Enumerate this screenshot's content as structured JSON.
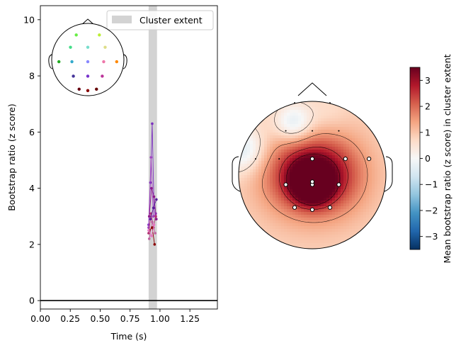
{
  "chart_data": [
    {
      "type": "line",
      "xlabel": "Time (s)",
      "ylabel": "Bootstrap ratio (z score)",
      "xlim": [
        0.0,
        1.48
      ],
      "ylim": [
        -0.3,
        10.5
      ],
      "xticks": [
        0.0,
        0.25,
        0.5,
        0.75,
        1.0,
        1.25
      ],
      "xtick_labels": [
        "0.00",
        "0.25",
        "0.50",
        "0.75",
        "1.00",
        "1.25"
      ],
      "yticks": [
        0,
        2,
        4,
        6,
        8,
        10
      ],
      "ytick_labels": [
        "0",
        "2",
        "4",
        "6",
        "8",
        "10"
      ],
      "baseline": 0,
      "cluster_extent": {
        "x0": 0.905,
        "x1": 0.975,
        "color": "#d3d3d3"
      },
      "legend": {
        "placement": "top-right",
        "entries": [
          {
            "label": "Cluster extent",
            "color": "#d3d3d3"
          }
        ]
      },
      "series": [
        {
          "color": "#7b2fbf",
          "x": [
            0.905,
            0.92,
            0.935,
            0.95,
            0.965
          ],
          "y": [
            2.7,
            4.2,
            6.3,
            3.3,
            2.9
          ]
        },
        {
          "color": "#a040c0",
          "x": [
            0.905,
            0.925,
            0.945,
            0.965
          ],
          "y": [
            2.6,
            5.1,
            3.0,
            3.1
          ]
        },
        {
          "color": "#8c1a8c",
          "x": [
            0.91,
            0.93,
            0.95,
            0.97
          ],
          "y": [
            3.0,
            4.0,
            3.7,
            2.9
          ]
        },
        {
          "color": "#b03070",
          "x": [
            0.905,
            0.925,
            0.945,
            0.965
          ],
          "y": [
            2.4,
            3.1,
            2.6,
            3.0
          ]
        },
        {
          "color": "#c060a0",
          "x": [
            0.91,
            0.935,
            0.96
          ],
          "y": [
            2.2,
            2.8,
            2.4
          ]
        },
        {
          "color": "#8b0000",
          "x": [
            0.91,
            0.935,
            0.955
          ],
          "y": [
            2.5,
            2.6,
            2.0
          ]
        },
        {
          "color": "#5a1d9c",
          "x": [
            0.92,
            0.945,
            0.97
          ],
          "y": [
            2.9,
            3.3,
            3.6
          ]
        },
        {
          "color": "#e377c2",
          "x": [
            0.905,
            0.93,
            0.95
          ],
          "y": [
            2.5,
            2.3,
            2.7
          ]
        }
      ],
      "inset_sensors": [
        {
          "x": 0.34,
          "y": 0.16,
          "color": "#66ee44"
        },
        {
          "x": 0.66,
          "y": 0.16,
          "color": "#bbee33"
        },
        {
          "x": 0.26,
          "y": 0.33,
          "color": "#44dd88"
        },
        {
          "x": 0.5,
          "y": 0.33,
          "color": "#77ddcc"
        },
        {
          "x": 0.74,
          "y": 0.33,
          "color": "#dddd88"
        },
        {
          "x": 0.1,
          "y": 0.53,
          "color": "#22aa22"
        },
        {
          "x": 0.28,
          "y": 0.53,
          "color": "#33aacc"
        },
        {
          "x": 0.5,
          "y": 0.53,
          "color": "#8888ff"
        },
        {
          "x": 0.72,
          "y": 0.53,
          "color": "#ee77aa"
        },
        {
          "x": 0.9,
          "y": 0.53,
          "color": "#ff8800"
        },
        {
          "x": 0.3,
          "y": 0.73,
          "color": "#443399"
        },
        {
          "x": 0.5,
          "y": 0.73,
          "color": "#7733cc"
        },
        {
          "x": 0.7,
          "y": 0.73,
          "color": "#bb3399"
        },
        {
          "x": 0.38,
          "y": 0.91,
          "color": "#660011"
        },
        {
          "x": 0.5,
          "y": 0.93,
          "color": "#880000"
        },
        {
          "x": 0.62,
          "y": 0.91,
          "color": "#660000"
        }
      ]
    },
    {
      "type": "heatmap",
      "subtype": "topomap",
      "colorbar_label": "Mean bootstrap ratio (z score) in cluster extent",
      "colorbar_range": [
        -3.5,
        3.5
      ],
      "colorbar_ticks": [
        -3,
        -2,
        -1,
        0,
        1,
        2,
        3
      ],
      "colorbar_tick_labels": [
        "−3",
        "−2",
        "−1",
        "0",
        "1",
        "2",
        "3"
      ],
      "colormap": [
        "#053061",
        "#2166ac",
        "#4393c3",
        "#92c5de",
        "#d1e5f0",
        "#f7f7f7",
        "#fddbc7",
        "#f4a582",
        "#d6604d",
        "#b2182b",
        "#67001f"
      ],
      "sources": [
        {
          "x": 0.0,
          "y": 0.1,
          "v": 5.0,
          "s": 0.16
        },
        {
          "x": 0.2,
          "y": 0.0,
          "v": 1.8,
          "s": 0.38
        },
        {
          "x": -0.2,
          "y": 0.0,
          "v": 1.5,
          "s": 0.38
        },
        {
          "x": -0.25,
          "y": -0.7,
          "v": -1.4,
          "s": 0.18
        },
        {
          "x": 0.2,
          "y": -0.8,
          "v": -0.3,
          "s": 0.2
        },
        {
          "x": -0.95,
          "y": -0.35,
          "v": -1.3,
          "s": 0.22
        }
      ],
      "base_value": 0.8,
      "sensors_marked": [
        {
          "x": 0.0,
          "y": -0.22
        },
        {
          "x": 0.45,
          "y": -0.22
        },
        {
          "x": 0.77,
          "y": -0.22
        },
        {
          "x": -0.36,
          "y": 0.13
        },
        {
          "x": 0.0,
          "y": 0.13
        },
        {
          "x": 0.36,
          "y": 0.13
        },
        {
          "x": -0.24,
          "y": 0.44
        },
        {
          "x": 0.0,
          "y": 0.47
        },
        {
          "x": 0.24,
          "y": 0.44
        },
        {
          "x": 0.0,
          "y": 0.09
        }
      ],
      "sensors_small": [
        {
          "x": -0.24,
          "y": -0.98
        },
        {
          "x": 0.24,
          "y": -0.98
        },
        {
          "x": -0.36,
          "y": -0.6
        },
        {
          "x": 0.0,
          "y": -0.6
        },
        {
          "x": 0.36,
          "y": -0.6
        },
        {
          "x": -0.77,
          "y": -0.22
        },
        {
          "x": -0.45,
          "y": -0.22
        }
      ]
    }
  ]
}
